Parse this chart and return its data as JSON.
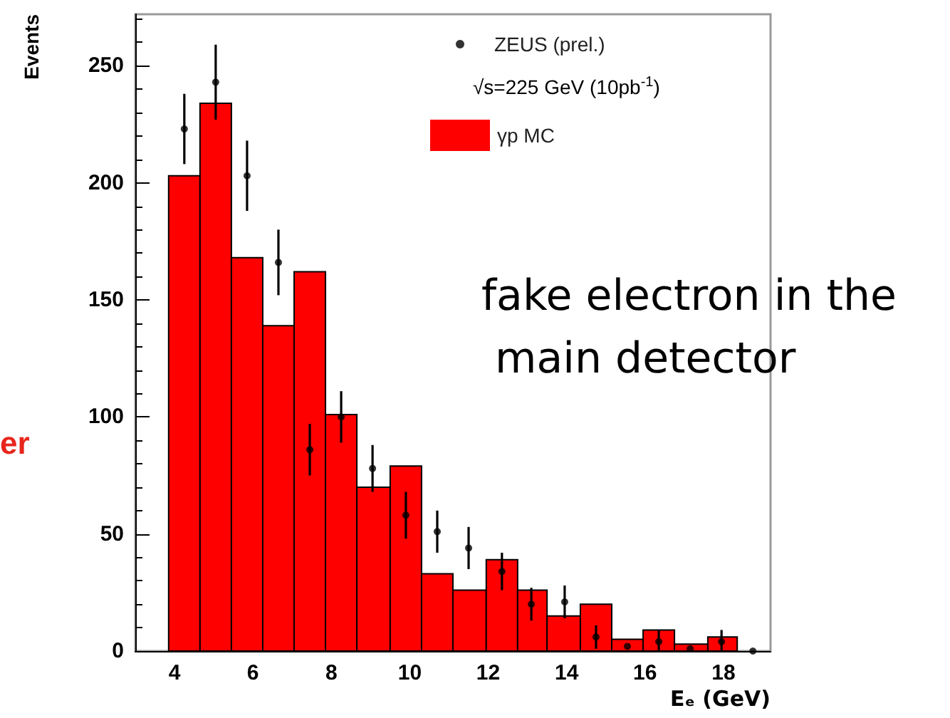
{
  "chart_data": {
    "type": "histogram",
    "xlabel": "Eₑ (GeV)",
    "ylabel": "Events",
    "xlim": [
      3,
      19.2
    ],
    "xticks": [
      4,
      6,
      8,
      10,
      12,
      14,
      16,
      18
    ],
    "ylim": [
      0,
      272
    ],
    "yticks": [
      0,
      50,
      100,
      150,
      200,
      250
    ],
    "grid": false,
    "legend": "top right",
    "annotations": [
      "√s=225 GeV (10pb$^{-1}$)",
      "fake electron in the main detector",
      "er"
    ],
    "series": [
      {
        "name": "γp MC",
        "color": "#ff0000",
        "bins": [
          3.85,
          4.65,
          5.45,
          6.25,
          7.05,
          7.85,
          8.65,
          9.5,
          10.3,
          11.1,
          11.95,
          12.75,
          13.5,
          14.35,
          15.15,
          15.95,
          16.75,
          17.6,
          18.35
        ],
        "values": [
          203,
          234,
          168,
          139,
          162,
          101,
          70,
          79,
          33,
          26,
          39,
          26,
          15,
          20,
          5,
          9,
          3,
          6
        ]
      },
      {
        "type": "scatter",
        "name": "ZEUS (prel.)",
        "color": "#000000",
        "marker": "circle",
        "x": [
          4.25,
          5.05,
          5.85,
          6.65,
          7.45,
          8.25,
          9.05,
          9.9,
          10.7,
          11.5,
          12.35,
          13.1,
          13.95,
          14.75,
          15.55,
          16.35,
          17.15,
          17.95,
          18.75
        ],
        "values": [
          223,
          243,
          203,
          166,
          86,
          100,
          78,
          58,
          51,
          44,
          34,
          20,
          21,
          6,
          2,
          4,
          1,
          4,
          0
        ],
        "errors": [
          15,
          16,
          15,
          14,
          11,
          11,
          10,
          10,
          9,
          9,
          8,
          7,
          7,
          5,
          null,
          [
            0,
            9
          ],
          null,
          [
            0,
            9
          ],
          null
        ]
      }
    ]
  }
}
